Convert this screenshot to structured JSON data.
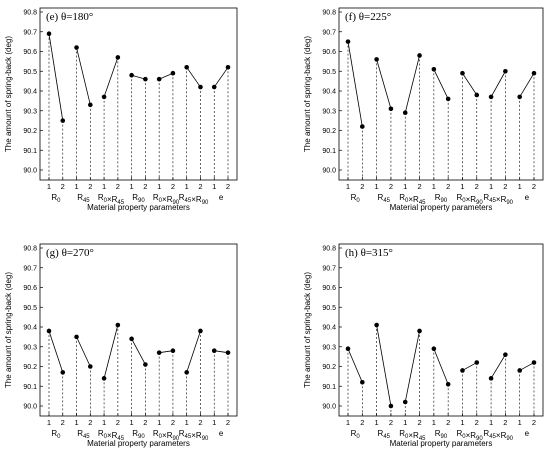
{
  "chart_data": [
    {
      "type": "line",
      "title": "(e)  θ=180°",
      "ylabel": "The amount of spring-back (deg)",
      "xlabel": "Material property parameters",
      "ylim": [
        90.0,
        90.8
      ],
      "yticks": [
        "90.0",
        "90.1",
        "90.2",
        "90.3",
        "90.4",
        "90.5",
        "90.6",
        "90.7",
        "90.8"
      ],
      "levels": [
        "1",
        "2"
      ],
      "categories": [
        "R0",
        "R45",
        "R0×R45",
        "R90",
        "R0×R90",
        "R45×R90",
        "e"
      ],
      "values": [
        [
          90.69,
          90.25
        ],
        [
          90.62,
          90.33
        ],
        [
          90.37,
          90.57
        ],
        [
          90.48,
          90.46
        ],
        [
          90.46,
          90.49
        ],
        [
          90.52,
          90.42
        ],
        [
          90.42,
          90.52
        ]
      ]
    },
    {
      "type": "line",
      "title": "(f)  θ=225°",
      "ylabel": "The amount of spring-back (deg)",
      "xlabel": "Material property parameters",
      "ylim": [
        90.0,
        90.8
      ],
      "yticks": [
        "90.0",
        "90.1",
        "90.2",
        "90.3",
        "90.4",
        "90.5",
        "90.6",
        "90.7",
        "90.8"
      ],
      "levels": [
        "1",
        "2"
      ],
      "categories": [
        "R0",
        "R45",
        "R0×R45",
        "R90",
        "R0×R90",
        "R45×R90",
        "e"
      ],
      "values": [
        [
          90.65,
          90.22
        ],
        [
          90.56,
          90.31
        ],
        [
          90.29,
          90.58
        ],
        [
          90.51,
          90.36
        ],
        [
          90.49,
          90.38
        ],
        [
          90.37,
          90.5
        ],
        [
          90.37,
          90.49
        ]
      ]
    },
    {
      "type": "line",
      "title": "(g)  θ=270°",
      "ylabel": "The amount of spring-back (deg)",
      "xlabel": "Material property parameters",
      "ylim": [
        90.0,
        90.8
      ],
      "yticks": [
        "90.0",
        "90.1",
        "90.2",
        "90.3",
        "90.4",
        "90.5",
        "90.6",
        "90.7",
        "90.8"
      ],
      "levels": [
        "1",
        "2"
      ],
      "categories": [
        "R0",
        "R45",
        "R0×R45",
        "R90",
        "R0×R90",
        "R45×R90",
        "e"
      ],
      "values": [
        [
          90.38,
          90.17
        ],
        [
          90.35,
          90.2
        ],
        [
          90.14,
          90.41
        ],
        [
          90.34,
          90.21
        ],
        [
          90.27,
          90.28
        ],
        [
          90.17,
          90.38
        ],
        [
          90.28,
          90.27
        ]
      ]
    },
    {
      "type": "line",
      "title": "(h)  θ=315°",
      "ylabel": "The amount of spring-back (deg)",
      "xlabel": "Material property parameters",
      "ylim": [
        90.0,
        90.8
      ],
      "yticks": [
        "90.0",
        "90.1",
        "90.2",
        "90.3",
        "90.4",
        "90.5",
        "90.6",
        "90.7",
        "90.8"
      ],
      "levels": [
        "1",
        "2"
      ],
      "categories": [
        "R0",
        "R45",
        "R0×R45",
        "R90",
        "R0×R90",
        "R45×R90",
        "e"
      ],
      "values": [
        [
          90.29,
          90.12
        ],
        [
          90.41,
          90.0
        ],
        [
          90.02,
          90.38
        ],
        [
          90.29,
          90.11
        ],
        [
          90.18,
          90.22
        ],
        [
          90.14,
          90.26
        ],
        [
          90.18,
          90.22
        ]
      ]
    }
  ]
}
